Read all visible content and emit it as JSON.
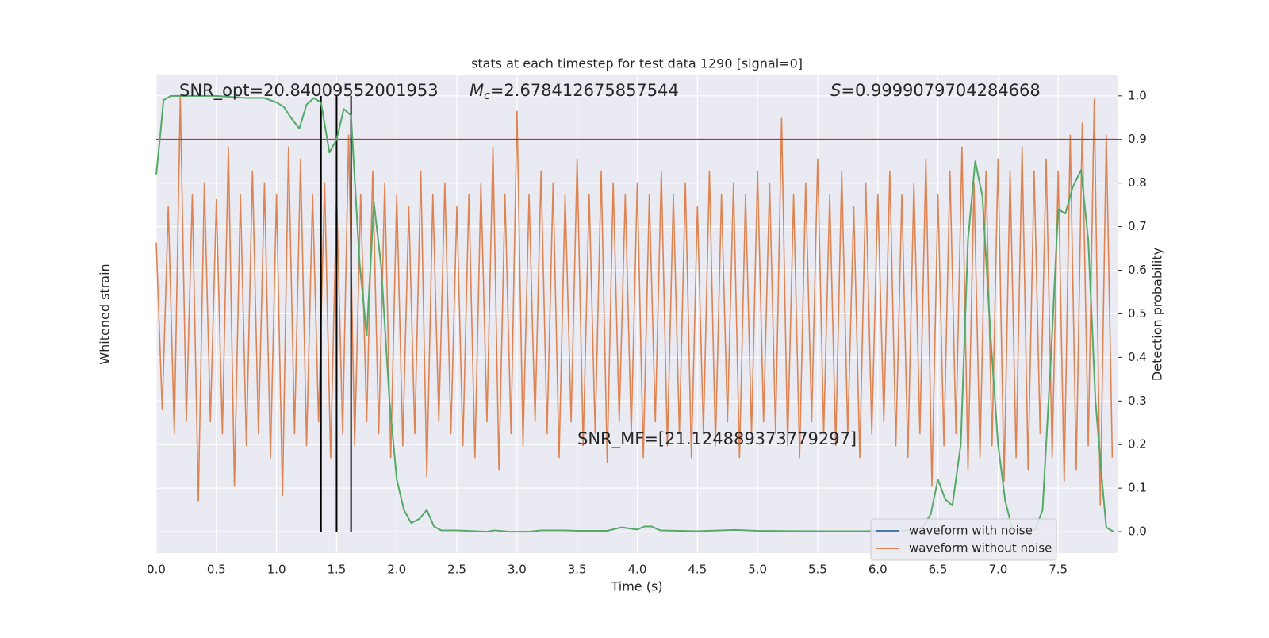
{
  "chart_data": {
    "type": "line",
    "title": "stats at each timestep for test data 1290 [signal=0]",
    "xlabel": "Time (s)",
    "ylabel": "Whitened strain",
    "y2label": "Detection probability",
    "xlim": [
      0,
      8
    ],
    "xticks": [
      {
        "value": 0,
        "label": "0.0"
      },
      {
        "value": 0.5,
        "label": "0.5"
      },
      {
        "value": 1,
        "label": "1.0"
      },
      {
        "value": 1.5,
        "label": "1.5"
      },
      {
        "value": 2,
        "label": "2.0"
      },
      {
        "value": 2.5,
        "label": "2.5"
      },
      {
        "value": 3,
        "label": "3.0"
      },
      {
        "value": 3.5,
        "label": "3.5"
      },
      {
        "value": 4,
        "label": "4.0"
      },
      {
        "value": 4.5,
        "label": "4.5"
      },
      {
        "value": 5,
        "label": "5.0"
      },
      {
        "value": 5.5,
        "label": "5.5"
      },
      {
        "value": 6,
        "label": "6.0"
      },
      {
        "value": 6.5,
        "label": "6.5"
      },
      {
        "value": 7,
        "label": "7.0"
      },
      {
        "value": 7.5,
        "label": "7.5"
      }
    ],
    "ylim": [
      -1,
      1
    ],
    "y2lim": [
      -0.049,
      1.047
    ],
    "y2ticks": [
      {
        "value": 0,
        "label": "0.0"
      },
      0.1,
      0.2,
      0.3,
      0.4,
      0.5,
      0.6,
      0.7,
      0.8,
      0.9,
      {
        "value": 1,
        "label": "1.0"
      }
    ],
    "grid": true,
    "legend": "lower right",
    "hlines": [
      {
        "value": 0.9,
        "color": "#b5333a",
        "axis": "y2"
      }
    ],
    "vlines": [
      1.37,
      1.5,
      1.62
    ],
    "vline_color": "#000000",
    "annotations": {
      "snr_opt": "SNR_opt=20.84009552001953",
      "mc": {
        "symbol": "M",
        "subscript": "c",
        "text": "=2.678412675857544"
      },
      "s": {
        "symbol": "S",
        "text": "=0.9999079704284668"
      },
      "snr_mf": "SNR_MF=[21.124889373779297]"
    },
    "series": [
      {
        "name": "waveform with noise",
        "color": "#4c72b0"
      },
      {
        "name": "waveform without noise",
        "color": "#dd8452",
        "x": [
          0,
          0.05,
          0.1,
          0.15,
          0.2,
          0.25,
          0.3,
          0.35,
          0.4,
          0.45,
          0.5,
          0.55,
          0.6,
          0.65,
          0.7,
          0.75,
          0.8,
          0.85,
          0.9,
          0.95,
          1,
          1.05,
          1.1,
          1.15,
          1.2,
          1.25,
          1.3,
          1.35,
          1.4,
          1.45,
          1.5,
          1.55,
          1.6,
          1.65,
          1.7,
          1.75,
          1.8,
          1.85,
          1.9,
          1.95,
          2,
          2.05,
          2.1,
          2.15,
          2.2,
          2.25,
          2.3,
          2.35,
          2.4,
          2.45,
          2.5,
          2.55,
          2.6,
          2.65,
          2.7,
          2.75,
          2.8,
          2.85,
          2.9,
          2.95,
          3,
          3.05,
          3.1,
          3.15,
          3.2,
          3.25,
          3.3,
          3.35,
          3.4,
          3.45,
          3.5,
          3.55,
          3.6,
          3.65,
          3.7,
          3.75,
          3.8,
          3.85,
          3.9,
          3.95,
          4,
          4.05,
          4.1,
          4.15,
          4.2,
          4.25,
          4.3,
          4.35,
          4.4,
          4.45,
          4.5,
          4.55,
          4.6,
          4.65,
          4.7,
          4.75,
          4.8,
          4.85,
          4.9,
          4.95,
          5,
          5.05,
          5.1,
          5.15,
          5.2,
          5.25,
          5.3,
          5.35,
          5.4,
          5.45,
          5.5,
          5.55,
          5.6,
          5.65,
          5.7,
          5.75,
          5.8,
          5.85,
          5.9,
          5.95,
          6,
          6.05,
          6.1,
          6.15,
          6.2,
          6.25,
          6.3,
          6.35,
          6.4,
          6.45,
          6.5,
          6.55,
          6.6,
          6.65,
          6.7,
          6.75,
          6.8,
          6.85,
          6.9,
          6.95,
          7,
          7.05,
          7.1,
          7.15,
          7.2,
          7.25,
          7.3,
          7.35,
          7.4,
          7.45,
          7.5,
          7.55,
          7.6,
          7.65,
          7.7,
          7.75,
          7.8,
          7.85,
          7.9,
          7.95
        ],
        "values": [
          0.3,
          -0.4,
          0.45,
          -0.5,
          0.91,
          -0.45,
          0.5,
          -0.78,
          0.55,
          -0.45,
          0.48,
          -0.5,
          0.7,
          -0.72,
          0.5,
          -0.55,
          0.6,
          -0.5,
          0.55,
          -0.6,
          0.5,
          -0.76,
          0.7,
          -0.5,
          0.65,
          -0.55,
          0.5,
          -0.45,
          0.55,
          -0.6,
          0.5,
          -0.5,
          0.75,
          -0.55,
          0.5,
          -0.45,
          0.6,
          -0.5,
          0.55,
          -0.6,
          0.5,
          -0.55,
          0.45,
          -0.5,
          0.6,
          -0.68,
          0.5,
          -0.45,
          0.55,
          -0.5,
          0.45,
          -0.55,
          0.5,
          -0.6,
          0.55,
          -0.45,
          0.7,
          -0.65,
          0.5,
          -0.5,
          0.85,
          -0.55,
          0.5,
          -0.45,
          0.6,
          -0.5,
          0.55,
          -0.6,
          0.5,
          -0.45,
          0.65,
          -0.55,
          0.5,
          -0.5,
          0.6,
          -0.62,
          0.55,
          -0.45,
          0.5,
          -0.5,
          0.55,
          -0.6,
          0.5,
          -0.45,
          0.6,
          -0.55,
          0.5,
          -0.5,
          0.55,
          -0.6,
          0.45,
          -0.5,
          0.6,
          -0.55,
          0.5,
          -0.45,
          0.55,
          -0.6,
          0.5,
          -0.5,
          0.6,
          -0.45,
          0.55,
          -0.5,
          0.82,
          -0.55,
          0.5,
          -0.6,
          0.55,
          -0.45,
          0.65,
          -0.5,
          0.5,
          -0.55,
          0.6,
          -0.5,
          0.45,
          -0.6,
          0.55,
          -0.5,
          0.5,
          -0.45,
          0.6,
          -0.55,
          0.5,
          -0.6,
          0.55,
          -0.5,
          0.65,
          -0.72,
          0.5,
          -0.55,
          0.6,
          -0.5,
          0.7,
          -0.65,
          0.55,
          -0.6,
          0.6,
          -0.55,
          0.65,
          -0.7,
          0.6,
          -0.6,
          0.7,
          -0.65,
          0.6,
          -0.5,
          0.65,
          -0.6,
          0.6,
          -0.7,
          0.75,
          -0.65,
          0.8,
          -0.55,
          0.9,
          -0.8,
          0.75,
          -0.6
        ]
      },
      {
        "color": "#55a868",
        "axis": "y2",
        "x": [
          0,
          0.03,
          0.06,
          0.12,
          0.25,
          0.5,
          0.75,
          0.9,
          1,
          1.06,
          1.12,
          1.19,
          1.25,
          1.31,
          1.37,
          1.44,
          1.5,
          1.56,
          1.62,
          1.69,
          1.75,
          1.81,
          1.87,
          1.94,
          2,
          2.06,
          2.12,
          2.19,
          2.25,
          2.31,
          2.37,
          2.5,
          2.75,
          2.81,
          2.94,
          3.1,
          3.2,
          3.4,
          3.5,
          3.75,
          3.87,
          4,
          4.06,
          4.12,
          4.19,
          4.5,
          4.69,
          4.81,
          5,
          5.5,
          6,
          6.25,
          6.37,
          6.44,
          6.5,
          6.56,
          6.62,
          6.69,
          6.75,
          6.81,
          6.87,
          6.94,
          7,
          7.06,
          7.12,
          7.25,
          7.31,
          7.37,
          7.44,
          7.5,
          7.56,
          7.62,
          7.69,
          7.75,
          7.81,
          7.87,
          7.9,
          7.96
        ],
        "values": [
          0.82,
          0.9,
          0.99,
          1,
          1,
          1,
          0.995,
          0.995,
          0.985,
          0.975,
          0.95,
          0.925,
          0.98,
          0.995,
          0.985,
          0.87,
          0.9,
          0.97,
          0.955,
          0.62,
          0.45,
          0.755,
          0.61,
          0.3,
          0.12,
          0.05,
          0.02,
          0.03,
          0.05,
          0.012,
          0.003,
          0.003,
          0,
          0.003,
          0,
          0,
          0.003,
          0.003,
          0.002,
          0.002,
          0.01,
          0.005,
          0.012,
          0.012,
          0.003,
          0.001,
          0.003,
          0.004,
          0.002,
          0.001,
          0.001,
          0.003,
          0.01,
          0.04,
          0.12,
          0.075,
          0.06,
          0.2,
          0.67,
          0.85,
          0.77,
          0.44,
          0.2,
          0.07,
          0.005,
          0.001,
          0.005,
          0.05,
          0.4,
          0.74,
          0.73,
          0.79,
          0.83,
          0.67,
          0.3,
          0.1,
          0.01,
          0
        ]
      }
    ]
  }
}
